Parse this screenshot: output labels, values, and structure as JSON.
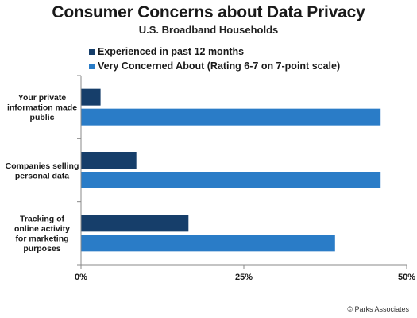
{
  "title": "Consumer Concerns about Data Privacy",
  "subtitle": "U.S. Broadband Households",
  "credit": "© Parks Associates",
  "colors": {
    "series1": "#163e6a",
    "series2": "#2a7cc7",
    "axis": "#888888"
  },
  "chart_data": {
    "type": "bar",
    "orientation": "horizontal",
    "categories": [
      [
        "Your private",
        "information made",
        "public"
      ],
      [
        "Companies selling",
        "personal data"
      ],
      [
        "Tracking of",
        "online activity",
        "for marketing",
        "purposes"
      ]
    ],
    "series": [
      {
        "name": "Experienced in past 12 months",
        "values": [
          3,
          8.5,
          16.5
        ]
      },
      {
        "name": "Very Concerned About (Rating 6-7 on 7-point scale)",
        "values": [
          46,
          46,
          39
        ]
      }
    ],
    "xlim": [
      0,
      50
    ],
    "x_ticks": [
      0,
      25,
      50
    ],
    "x_tick_labels": [
      "0%",
      "25%",
      "50%"
    ],
    "legend_position": "top",
    "grid": false
  }
}
